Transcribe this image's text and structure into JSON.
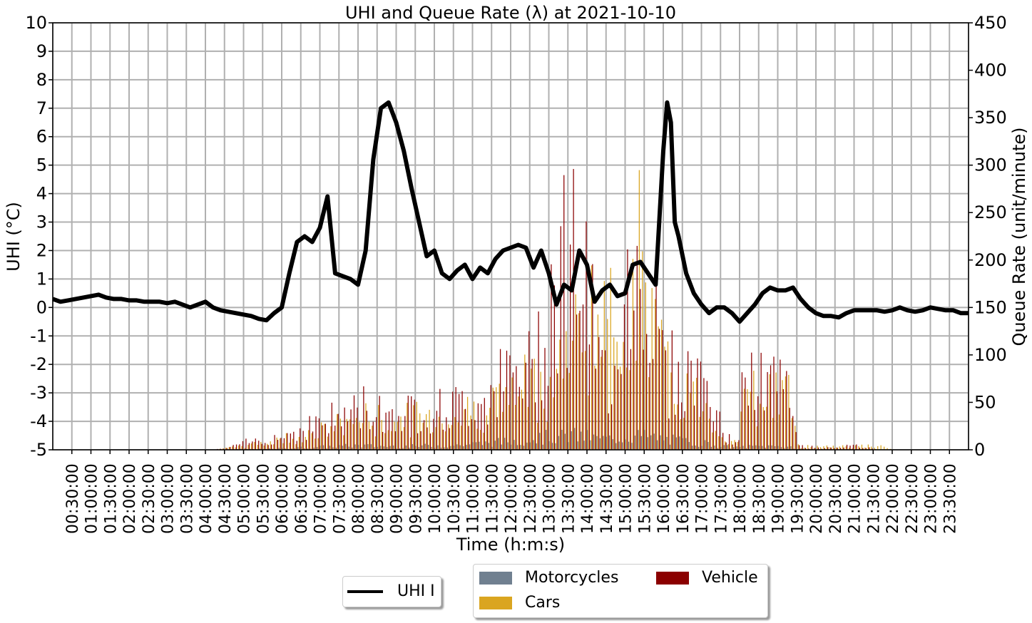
{
  "chart_data": {
    "type": "bar+line",
    "title": "UHI and Queue Rate (λ) at 2021-10-10",
    "xlabel": "Time (h:m:s)",
    "ylabel_left": "UHI (°C)",
    "ylabel_right": "Queue Rate (unit/minute)",
    "ylim_left": [
      -5,
      10
    ],
    "ylim_right": [
      0,
      450
    ],
    "yticks_left": [
      "-5",
      "-4",
      "-3",
      "-2",
      "-1",
      "0",
      "1",
      "2",
      "3",
      "4",
      "5",
      "6",
      "7",
      "8",
      "9",
      "10"
    ],
    "yticks_right": [
      "0",
      "50",
      "100",
      "150",
      "200",
      "250",
      "300",
      "350",
      "400",
      "450"
    ],
    "xticks": [
      "00:30:00",
      "01:00:00",
      "01:30:00",
      "02:00:00",
      "02:30:00",
      "03:00:00",
      "03:30:00",
      "04:00:00",
      "04:30:00",
      "05:00:00",
      "05:30:00",
      "06:00:00",
      "06:30:00",
      "07:00:00",
      "07:30:00",
      "08:00:00",
      "08:30:00",
      "09:00:00",
      "09:30:00",
      "10:00:00",
      "10:30:00",
      "11:00:00",
      "11:30:00",
      "12:00:00",
      "12:30:00",
      "13:00:00",
      "13:30:00",
      "14:00:00",
      "14:30:00",
      "15:00:00",
      "15:30:00",
      "16:00:00",
      "16:30:00",
      "17:00:00",
      "17:30:00",
      "18:00:00",
      "18:30:00",
      "19:00:00",
      "19:30:00",
      "20:00:00",
      "20:30:00",
      "21:00:00",
      "21:30:00",
      "22:00:00",
      "22:30:00",
      "23:00:00",
      "23:30:00"
    ],
    "grid": true,
    "legend_placement": "bottom-center",
    "uhi_series": {
      "name": "UHI I",
      "color": "#000000",
      "x_hours": [
        0.0,
        0.2,
        0.4,
        0.6,
        0.8,
        1.0,
        1.2,
        1.4,
        1.6,
        1.8,
        2.0,
        2.2,
        2.4,
        2.6,
        2.8,
        3.0,
        3.2,
        3.4,
        3.6,
        3.8,
        4.0,
        4.2,
        4.4,
        4.6,
        4.8,
        5.0,
        5.2,
        5.4,
        5.6,
        5.8,
        6.0,
        6.2,
        6.4,
        6.6,
        6.8,
        7.0,
        7.2,
        7.4,
        7.6,
        7.8,
        8.0,
        8.2,
        8.4,
        8.6,
        8.8,
        9.0,
        9.2,
        9.4,
        9.6,
        9.8,
        10.0,
        10.2,
        10.4,
        10.6,
        10.8,
        11.0,
        11.2,
        11.4,
        11.6,
        11.8,
        12.0,
        12.2,
        12.4,
        12.6,
        12.8,
        13.0,
        13.2,
        13.4,
        13.6,
        13.8,
        14.0,
        14.2,
        14.4,
        14.6,
        14.8,
        15.0,
        15.2,
        15.4,
        15.6,
        15.8,
        16.0,
        16.1,
        16.2,
        16.3,
        16.4,
        16.6,
        16.8,
        17.0,
        17.2,
        17.4,
        17.6,
        17.8,
        18.0,
        18.2,
        18.4,
        18.6,
        18.8,
        19.0,
        19.2,
        19.4,
        19.6,
        19.8,
        20.0,
        20.2,
        20.4,
        20.6,
        20.8,
        21.0,
        21.2,
        21.4,
        21.6,
        21.8,
        22.0,
        22.2,
        22.4,
        22.6,
        22.8,
        23.0,
        23.2,
        23.4,
        23.6,
        23.8,
        24.0
      ],
      "y": [
        0.3,
        0.2,
        0.25,
        0.3,
        0.35,
        0.4,
        0.45,
        0.35,
        0.3,
        0.3,
        0.25,
        0.25,
        0.2,
        0.2,
        0.2,
        0.15,
        0.2,
        0.1,
        0.0,
        0.1,
        0.2,
        0.0,
        -0.1,
        -0.15,
        -0.2,
        -0.25,
        -0.3,
        -0.4,
        -0.45,
        -0.2,
        0.0,
        1.2,
        2.3,
        2.5,
        2.3,
        2.8,
        3.9,
        1.2,
        1.1,
        1.0,
        0.8,
        2.0,
        5.2,
        7.0,
        7.2,
        6.5,
        5.5,
        4.2,
        3.0,
        1.8,
        2.0,
        1.2,
        1.0,
        1.3,
        1.5,
        1.0,
        1.4,
        1.2,
        1.7,
        2.0,
        2.1,
        2.2,
        2.1,
        1.4,
        2.0,
        1.2,
        0.1,
        0.8,
        0.6,
        2.0,
        1.5,
        0.2,
        0.6,
        0.8,
        0.4,
        0.5,
        1.5,
        1.6,
        1.2,
        0.8,
        5.5,
        7.2,
        6.5,
        3.0,
        2.5,
        1.2,
        0.5,
        0.1,
        -0.2,
        0.0,
        0.0,
        -0.2,
        -0.5,
        -0.2,
        0.1,
        0.5,
        0.7,
        0.6,
        0.6,
        0.7,
        0.3,
        0.0,
        -0.2,
        -0.3,
        -0.3,
        -0.35,
        -0.2,
        -0.1,
        -0.1,
        -0.1,
        -0.1,
        -0.15,
        -0.1,
        0.0,
        -0.1,
        -0.15,
        -0.1,
        0.0,
        -0.05,
        -0.1,
        -0.1,
        -0.2,
        -0.2
      ]
    },
    "bar_series": [
      {
        "name": "Motorcycles",
        "color": "#708090"
      },
      {
        "name": "Cars",
        "color": "#DAA520"
      },
      {
        "name": "Vehicle",
        "color": "#8B0000"
      }
    ],
    "bar_profile_hours": [
      0.0,
      1.0,
      2.0,
      3.0,
      4.0,
      4.5,
      5.0,
      5.5,
      6.0,
      6.5,
      7.0,
      7.5,
      8.0,
      8.5,
      9.0,
      9.5,
      10.0,
      10.5,
      11.0,
      11.5,
      12.0,
      12.5,
      13.0,
      13.3,
      13.6,
      14.0,
      14.3,
      14.6,
      15.0,
      15.3,
      15.6,
      16.0,
      16.5,
      17.0,
      17.5,
      17.9,
      18.0,
      18.5,
      19.0,
      19.3,
      19.5,
      20.0,
      21.0,
      21.6,
      22.0,
      24.0
    ],
    "bar_profile_cars": [
      0,
      0,
      0,
      0,
      0,
      2,
      5,
      10,
      15,
      20,
      25,
      35,
      45,
      40,
      40,
      45,
      45,
      45,
      55,
      65,
      75,
      90,
      95,
      130,
      140,
      190,
      175,
      160,
      220,
      260,
      210,
      100,
      80,
      70,
      20,
      10,
      60,
      80,
      80,
      75,
      5,
      5,
      5,
      5,
      0,
      0
    ],
    "bar_profile_vehicle": [
      0,
      0,
      0,
      0,
      0,
      2,
      10,
      15,
      20,
      30,
      40,
      45,
      60,
      55,
      50,
      55,
      55,
      60,
      65,
      90,
      100,
      110,
      230,
      260,
      300,
      190,
      100,
      120,
      230,
      260,
      220,
      110,
      100,
      110,
      20,
      10,
      80,
      95,
      90,
      60,
      5,
      3,
      5,
      0,
      0,
      0
    ],
    "bar_profile_motorcycles": [
      0,
      0,
      0,
      0,
      0,
      0,
      1,
      1,
      2,
      3,
      4,
      5,
      6,
      5,
      5,
      5,
      6,
      6,
      8,
      10,
      12,
      15,
      18,
      18,
      20,
      18,
      15,
      15,
      18,
      20,
      18,
      15,
      12,
      10,
      5,
      3,
      4,
      5,
      5,
      5,
      1,
      1,
      0,
      0,
      0,
      0
    ]
  }
}
